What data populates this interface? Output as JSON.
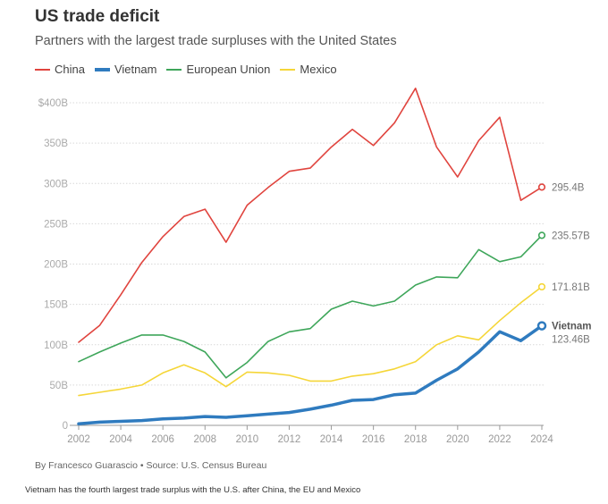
{
  "title": "US trade deficit",
  "subtitle": "Partners with the largest trade surpluses with the United States",
  "byline": "By Francesco Guarascio • Source: U.S. Census Bureau",
  "caption": "Vietnam has the fourth largest trade surplus with the U.S. after China, the EU and Mexico",
  "chart_data": {
    "type": "line",
    "title": "US trade deficit",
    "subtitle": "Partners with the largest trade surpluses with the United States",
    "legend_position": "top-left",
    "grid": true,
    "ylim": [
      0,
      400
    ],
    "y_ticks": [
      0,
      50,
      100,
      150,
      200,
      250,
      300,
      350,
      400
    ],
    "y_tick_labels": [
      "0",
      "50B",
      "100B",
      "150B",
      "200B",
      "250B",
      "300B",
      "350B",
      "$400B"
    ],
    "x": [
      2002,
      2003,
      2004,
      2005,
      2006,
      2007,
      2008,
      2009,
      2010,
      2011,
      2012,
      2013,
      2014,
      2015,
      2016,
      2017,
      2018,
      2019,
      2020,
      2021,
      2022,
      2023,
      2024
    ],
    "x_ticks": [
      2002,
      2004,
      2006,
      2008,
      2010,
      2012,
      2014,
      2016,
      2018,
      2020,
      2022,
      2024
    ],
    "series": [
      {
        "name": "China",
        "color": "#e0443e",
        "thick": false,
        "values": [
          103,
          124,
          162,
          202,
          234,
          259,
          268,
          227,
          273,
          295,
          315,
          319,
          345,
          367,
          347,
          375,
          418,
          345,
          308,
          353,
          382,
          279,
          295.4
        ],
        "end_label": "295.4B",
        "end_name": ""
      },
      {
        "name": "Vietnam",
        "color": "#2f7bbf",
        "thick": true,
        "values": [
          2,
          4,
          5,
          6,
          8,
          9,
          11,
          10,
          12,
          14,
          16,
          20,
          25,
          31,
          32,
          38,
          40,
          56,
          70,
          91,
          116,
          105,
          123.46
        ],
        "end_label": "123.46B",
        "end_name": "Vietnam"
      },
      {
        "name": "European Union",
        "color": "#3ea65a",
        "thick": false,
        "values": [
          79,
          91,
          102,
          112,
          112,
          104,
          91,
          59,
          78,
          104,
          116,
          120,
          144,
          154,
          148,
          154,
          174,
          184,
          183,
          218,
          203,
          209,
          235.57
        ],
        "end_label": "235.57B",
        "end_name": ""
      },
      {
        "name": "Mexico",
        "color": "#f5d638",
        "thick": false,
        "values": [
          37,
          41,
          45,
          50,
          65,
          75,
          65,
          48,
          66,
          65,
          62,
          55,
          55,
          61,
          64,
          70,
          79,
          100,
          111,
          106,
          130,
          152,
          171.81
        ],
        "end_label": "171.81B",
        "end_name": ""
      }
    ]
  }
}
